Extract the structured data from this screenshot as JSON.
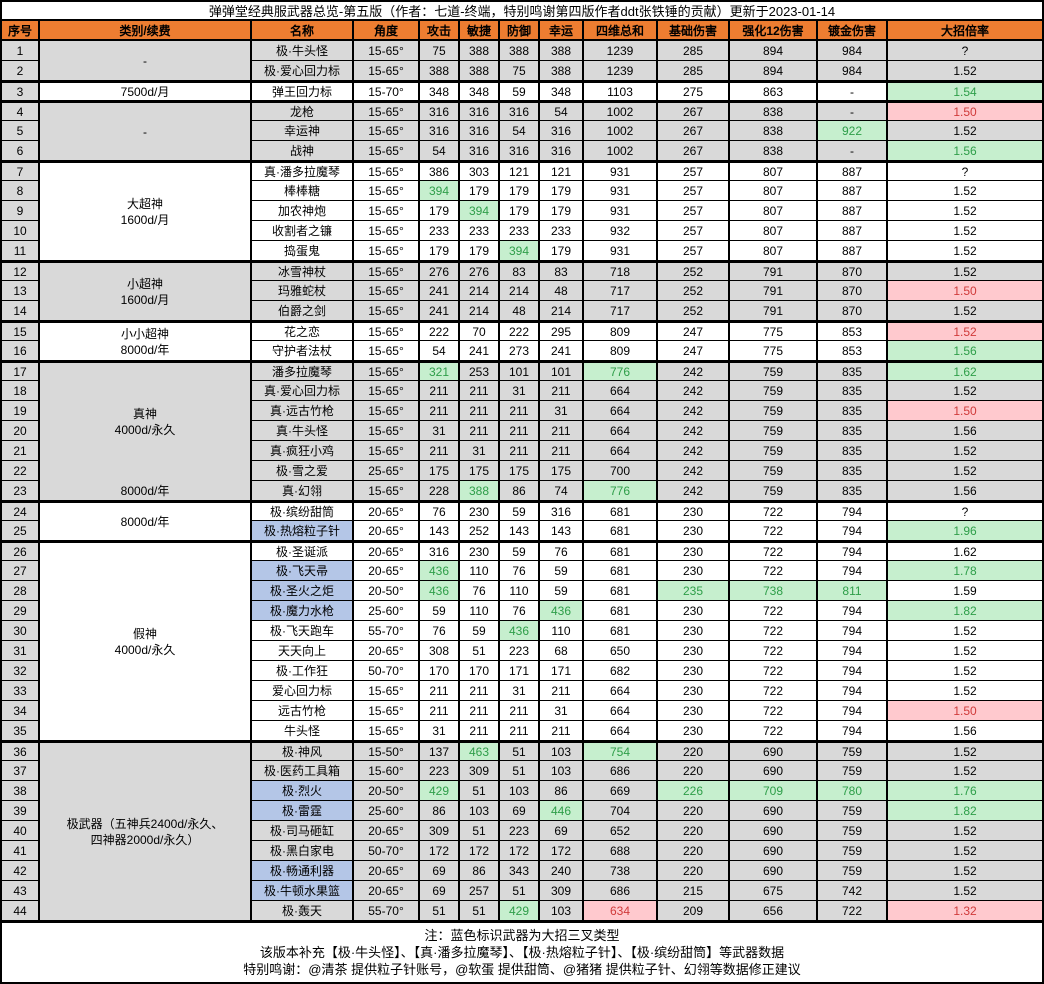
{
  "title": "弹弹堂经典服武器总览-第五版（作者：七道-终端，特别鸣谢第四版作者ddt张铁锤的贡献）更新于2023-01-14",
  "columns": [
    "序号",
    "类别/续费",
    "名称",
    "角度",
    "攻击",
    "敏捷",
    "防御",
    "幸运",
    "四维总和",
    "基础伤害",
    "强化12伤害",
    "镀金伤害",
    "大招倍率"
  ],
  "colors": {
    "header_bg": "#ED7D31",
    "shade_bg": "#D9D9D9",
    "good_bg": "#C6EFCE",
    "good_text": "#2E9E49",
    "bad_bg": "#FFC9CE",
    "bad_text": "#D03A3A",
    "trident_blue_bg": "#B4C6E7"
  },
  "groups": [
    {
      "start": 1,
      "end": 2,
      "label": "-",
      "shade": true
    },
    {
      "start": 3,
      "end": 3,
      "label": "7500d/月",
      "shade": false
    },
    {
      "start": 4,
      "end": 6,
      "label": "-",
      "shade": true
    },
    {
      "start": 7,
      "end": 11,
      "label": "大超神\n1600d/月",
      "shade": false
    },
    {
      "start": 12,
      "end": 14,
      "label": "小超神\n1600d/月",
      "shade": true
    },
    {
      "start": 15,
      "end": 16,
      "label": "小小超神\n8000d/年",
      "shade": false
    },
    {
      "start": 17,
      "end": 23,
      "label": "真神\n4000d/永久",
      "label2": "8000d/年",
      "shade": true
    },
    {
      "start": 24,
      "end": 25,
      "label": "8000d/年",
      "shade": false
    },
    {
      "start": 26,
      "end": 35,
      "label": "假神\n4000d/永久",
      "shade": false
    },
    {
      "start": 36,
      "end": 44,
      "label": "极武器（五神兵2400d/永久、\n四神器2000d/永久）",
      "shade": true
    }
  ],
  "rows": [
    {
      "no": "1",
      "name": "极·牛头怪",
      "name_blue": false,
      "values": [
        "15-65°",
        "75",
        "388",
        "388",
        "388",
        "1239",
        "285",
        "894",
        "984",
        "?"
      ],
      "marks": {}
    },
    {
      "no": "2",
      "name": "极·爱心回力标",
      "name_blue": false,
      "values": [
        "15-65°",
        "388",
        "388",
        "75",
        "388",
        "1239",
        "285",
        "894",
        "984",
        "1.52"
      ],
      "marks": {}
    },
    {
      "no": "3",
      "name": "弹王回力标",
      "name_blue": false,
      "values": [
        "15-70°",
        "348",
        "348",
        "59",
        "348",
        "1103",
        "275",
        "863",
        "-",
        "1.54"
      ],
      "marks": {
        "9": "g"
      }
    },
    {
      "no": "4",
      "name": "龙枪",
      "name_blue": false,
      "values": [
        "15-65°",
        "316",
        "316",
        "316",
        "54",
        "1002",
        "267",
        "838",
        "-",
        "1.50"
      ],
      "marks": {
        "9": "b"
      }
    },
    {
      "no": "5",
      "name": "幸运神",
      "name_blue": false,
      "values": [
        "15-65°",
        "316",
        "316",
        "54",
        "316",
        "1002",
        "267",
        "838",
        "922",
        "1.52"
      ],
      "marks": {
        "8": "g"
      }
    },
    {
      "no": "6",
      "name": "战神",
      "name_blue": false,
      "values": [
        "15-65°",
        "54",
        "316",
        "316",
        "316",
        "1002",
        "267",
        "838",
        "-",
        "1.56"
      ],
      "marks": {
        "9": "g"
      }
    },
    {
      "no": "7",
      "name": "真·潘多拉魔琴",
      "name_blue": false,
      "values": [
        "15-65°",
        "386",
        "303",
        "121",
        "121",
        "931",
        "257",
        "807",
        "887",
        "?"
      ],
      "marks": {}
    },
    {
      "no": "8",
      "name": "棒棒糖",
      "name_blue": false,
      "values": [
        "15-65°",
        "394",
        "179",
        "179",
        "179",
        "931",
        "257",
        "807",
        "887",
        "1.52"
      ],
      "marks": {
        "1": "g"
      }
    },
    {
      "no": "9",
      "name": "加农神炮",
      "name_blue": false,
      "values": [
        "15-65°",
        "179",
        "394",
        "179",
        "179",
        "931",
        "257",
        "807",
        "887",
        "1.52"
      ],
      "marks": {
        "2": "g"
      }
    },
    {
      "no": "10",
      "name": "收割者之镰",
      "name_blue": false,
      "values": [
        "15-65°",
        "233",
        "233",
        "233",
        "233",
        "932",
        "257",
        "807",
        "887",
        "1.52"
      ],
      "marks": {}
    },
    {
      "no": "11",
      "name": "捣蛋鬼",
      "name_blue": false,
      "values": [
        "15-65°",
        "179",
        "179",
        "394",
        "179",
        "931",
        "257",
        "807",
        "887",
        "1.52"
      ],
      "marks": {
        "3": "g"
      }
    },
    {
      "no": "12",
      "name": "冰雪神杖",
      "name_blue": false,
      "values": [
        "15-65°",
        "276",
        "276",
        "83",
        "83",
        "718",
        "252",
        "791",
        "870",
        "1.52"
      ],
      "marks": {}
    },
    {
      "no": "13",
      "name": "玛雅蛇杖",
      "name_blue": false,
      "values": [
        "15-65°",
        "241",
        "214",
        "214",
        "48",
        "717",
        "252",
        "791",
        "870",
        "1.50"
      ],
      "marks": {
        "9": "b"
      }
    },
    {
      "no": "14",
      "name": "伯爵之剑",
      "name_blue": false,
      "values": [
        "15-65°",
        "241",
        "214",
        "48",
        "214",
        "717",
        "252",
        "791",
        "870",
        "1.52"
      ],
      "marks": {}
    },
    {
      "no": "15",
      "name": "花之恋",
      "name_blue": false,
      "values": [
        "15-65°",
        "222",
        "70",
        "222",
        "295",
        "809",
        "247",
        "775",
        "853",
        "1.52"
      ],
      "marks": {
        "9": "b"
      }
    },
    {
      "no": "16",
      "name": "守护者法杖",
      "name_blue": false,
      "values": [
        "15-65°",
        "54",
        "241",
        "273",
        "241",
        "809",
        "247",
        "775",
        "853",
        "1.56"
      ],
      "marks": {
        "9": "g"
      }
    },
    {
      "no": "17",
      "name": "潘多拉魔琴",
      "name_blue": false,
      "values": [
        "15-65°",
        "321",
        "253",
        "101",
        "101",
        "776",
        "242",
        "759",
        "835",
        "1.62"
      ],
      "marks": {
        "1": "g",
        "5": "g",
        "9": "g"
      }
    },
    {
      "no": "18",
      "name": "真·爱心回力标",
      "name_blue": false,
      "values": [
        "15-65°",
        "211",
        "211",
        "31",
        "211",
        "664",
        "242",
        "759",
        "835",
        "1.52"
      ],
      "marks": {}
    },
    {
      "no": "19",
      "name": "真·远古竹枪",
      "name_blue": false,
      "values": [
        "15-65°",
        "211",
        "211",
        "211",
        "31",
        "664",
        "242",
        "759",
        "835",
        "1.50"
      ],
      "marks": {
        "9": "b"
      }
    },
    {
      "no": "20",
      "name": "真·牛头怪",
      "name_blue": false,
      "values": [
        "15-65°",
        "31",
        "211",
        "211",
        "211",
        "664",
        "242",
        "759",
        "835",
        "1.56"
      ],
      "marks": {}
    },
    {
      "no": "21",
      "name": "真·疯狂小鸡",
      "name_blue": false,
      "values": [
        "15-65°",
        "211",
        "31",
        "211",
        "211",
        "664",
        "242",
        "759",
        "835",
        "1.52"
      ],
      "marks": {}
    },
    {
      "no": "22",
      "name": "极·雪之爱",
      "name_blue": false,
      "values": [
        "25-65°",
        "175",
        "175",
        "175",
        "175",
        "700",
        "242",
        "759",
        "835",
        "1.52"
      ],
      "marks": {}
    },
    {
      "no": "23",
      "name": "真·幻翎",
      "name_blue": false,
      "values": [
        "15-65°",
        "228",
        "388",
        "86",
        "74",
        "776",
        "242",
        "759",
        "835",
        "1.56"
      ],
      "marks": {
        "2": "g",
        "5": "g"
      }
    },
    {
      "no": "24",
      "name": "极·缤纷甜筒",
      "name_blue": false,
      "values": [
        "20-65°",
        "76",
        "230",
        "59",
        "316",
        "681",
        "230",
        "722",
        "794",
        "?"
      ],
      "marks": {}
    },
    {
      "no": "25",
      "name": "极·热熔粒子针",
      "name_blue": true,
      "values": [
        "20-65°",
        "143",
        "252",
        "143",
        "143",
        "681",
        "230",
        "722",
        "794",
        "1.96"
      ],
      "marks": {
        "9": "g"
      }
    },
    {
      "no": "26",
      "name": "极·圣诞派",
      "name_blue": false,
      "values": [
        "20-65°",
        "316",
        "230",
        "59",
        "76",
        "681",
        "230",
        "722",
        "794",
        "1.62"
      ],
      "marks": {}
    },
    {
      "no": "27",
      "name": "极·飞天帚",
      "name_blue": true,
      "values": [
        "20-65°",
        "436",
        "110",
        "76",
        "59",
        "681",
        "230",
        "722",
        "794",
        "1.78"
      ],
      "marks": {
        "1": "g",
        "9": "g"
      }
    },
    {
      "no": "28",
      "name": "极·圣火之炬",
      "name_blue": true,
      "values": [
        "20-50°",
        "436",
        "76",
        "110",
        "59",
        "681",
        "235",
        "738",
        "811",
        "1.59"
      ],
      "marks": {
        "1": "g",
        "6": "g",
        "7": "g",
        "8": "g"
      }
    },
    {
      "no": "29",
      "name": "极·魔力水枪",
      "name_blue": true,
      "values": [
        "25-60°",
        "59",
        "110",
        "76",
        "436",
        "681",
        "230",
        "722",
        "794",
        "1.82"
      ],
      "marks": {
        "4": "g",
        "9": "g"
      }
    },
    {
      "no": "30",
      "name": "极·飞天跑车",
      "name_blue": false,
      "values": [
        "55-70°",
        "76",
        "59",
        "436",
        "110",
        "681",
        "230",
        "722",
        "794",
        "1.52"
      ],
      "marks": {
        "3": "g"
      }
    },
    {
      "no": "31",
      "name": "天天向上",
      "name_blue": false,
      "values": [
        "20-65°",
        "308",
        "51",
        "223",
        "68",
        "650",
        "230",
        "722",
        "794",
        "1.52"
      ],
      "marks": {}
    },
    {
      "no": "32",
      "name": "极·工作狂",
      "name_blue": false,
      "values": [
        "50-70°",
        "170",
        "170",
        "171",
        "171",
        "682",
        "230",
        "722",
        "794",
        "1.52"
      ],
      "marks": {}
    },
    {
      "no": "33",
      "name": "爱心回力标",
      "name_blue": false,
      "values": [
        "15-65°",
        "211",
        "211",
        "31",
        "211",
        "664",
        "230",
        "722",
        "794",
        "1.52"
      ],
      "marks": {}
    },
    {
      "no": "34",
      "name": "远古竹枪",
      "name_blue": false,
      "values": [
        "15-65°",
        "211",
        "211",
        "211",
        "31",
        "664",
        "230",
        "722",
        "794",
        "1.50"
      ],
      "marks": {
        "9": "b"
      }
    },
    {
      "no": "35",
      "name": "牛头怪",
      "name_blue": false,
      "values": [
        "15-65°",
        "31",
        "211",
        "211",
        "211",
        "664",
        "230",
        "722",
        "794",
        "1.56"
      ],
      "marks": {}
    },
    {
      "no": "36",
      "name": "极·神风",
      "name_blue": false,
      "values": [
        "15-50°",
        "137",
        "463",
        "51",
        "103",
        "754",
        "220",
        "690",
        "759",
        "1.52"
      ],
      "marks": {
        "2": "g",
        "5": "g"
      }
    },
    {
      "no": "37",
      "name": "极·医药工具箱",
      "name_blue": false,
      "values": [
        "15-60°",
        "223",
        "309",
        "51",
        "103",
        "686",
        "220",
        "690",
        "759",
        "1.52"
      ],
      "marks": {}
    },
    {
      "no": "38",
      "name": "极·烈火",
      "name_blue": true,
      "values": [
        "20-50°",
        "429",
        "51",
        "103",
        "86",
        "669",
        "226",
        "709",
        "780",
        "1.76"
      ],
      "marks": {
        "1": "g",
        "6": "g",
        "7": "g",
        "8": "g",
        "9": "g"
      }
    },
    {
      "no": "39",
      "name": "极·雷霆",
      "name_blue": true,
      "values": [
        "25-60°",
        "86",
        "103",
        "69",
        "446",
        "704",
        "220",
        "690",
        "759",
        "1.82"
      ],
      "marks": {
        "4": "g",
        "9": "g"
      }
    },
    {
      "no": "40",
      "name": "极·司马砸缸",
      "name_blue": false,
      "values": [
        "20-65°",
        "309",
        "51",
        "223",
        "69",
        "652",
        "220",
        "690",
        "759",
        "1.52"
      ],
      "marks": {}
    },
    {
      "no": "41",
      "name": "极·黑白家电",
      "name_blue": false,
      "values": [
        "50-70°",
        "172",
        "172",
        "172",
        "172",
        "688",
        "220",
        "690",
        "759",
        "1.52"
      ],
      "marks": {}
    },
    {
      "no": "42",
      "name": "极·畅通利器",
      "name_blue": true,
      "values": [
        "20-65°",
        "69",
        "86",
        "343",
        "240",
        "738",
        "220",
        "690",
        "759",
        "1.52"
      ],
      "marks": {}
    },
    {
      "no": "43",
      "name": "极·牛顿水果篮",
      "name_blue": true,
      "values": [
        "20-65°",
        "69",
        "257",
        "51",
        "309",
        "686",
        "215",
        "675",
        "742",
        "1.52"
      ],
      "marks": {}
    },
    {
      "no": "44",
      "name": "极·轰天",
      "name_blue": false,
      "values": [
        "55-70°",
        "51",
        "51",
        "429",
        "103",
        "634",
        "209",
        "656",
        "722",
        "1.32"
      ],
      "marks": {
        "3": "g",
        "5": "b",
        "9": "b"
      }
    }
  ],
  "notes": [
    "注：蓝色标识武器为大招三叉类型",
    "该版本补充【极·牛头怪】、【真·潘多拉魔琴】、【极·热熔粒子针】、【极·缤纷甜筒】等武器数据",
    "特别鸣谢：@清茶 提供粒子针账号，@软蛋 提供甜筒、@猪猪 提供粒子针、幻翎等数据修正建议"
  ]
}
